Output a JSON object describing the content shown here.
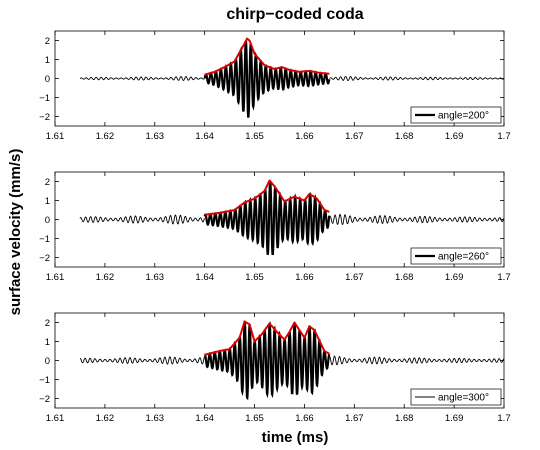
{
  "chart_data": {
    "type": "line",
    "title": "chirp−coded coda",
    "xlabel": "time (ms)",
    "ylabel": "surface velocity (mm/s)",
    "xlim": [
      1.61,
      1.7
    ],
    "ylim": [
      -2.5,
      2.5
    ],
    "xticks": [
      "1.61",
      "1.62",
      "1.63",
      "1.64",
      "1.65",
      "1.66",
      "1.67",
      "1.68",
      "1.69",
      "1.7"
    ],
    "yticks": [
      "2",
      "1",
      "0",
      "−1",
      "−2"
    ],
    "grid": false,
    "legend_position": "bottom-right",
    "series_colors": {
      "signal": "#000000",
      "envelope": "#dd0000"
    },
    "panels": [
      {
        "legend": "angle=200°",
        "signal_time_range": [
          1.615,
          1.7
        ],
        "envelope_time_range": [
          1.64,
          1.665
        ],
        "wave_frequency_per_ms": 1000,
        "background_amplitude": 0.05,
        "envelope": {
          "x": [
            1.64,
            1.642,
            1.644,
            1.646,
            1.648,
            1.6485,
            1.649,
            1.65,
            1.651,
            1.652,
            1.654,
            1.6555,
            1.657,
            1.659,
            1.661,
            1.663,
            1.665
          ],
          "y": [
            0.2,
            0.35,
            0.6,
            0.9,
            1.85,
            2.1,
            2.0,
            1.3,
            1.0,
            0.7,
            0.5,
            0.6,
            0.45,
            0.35,
            0.4,
            0.3,
            0.25
          ]
        }
      },
      {
        "legend": "angle=260°",
        "signal_time_range": [
          1.615,
          1.7
        ],
        "envelope_time_range": [
          1.64,
          1.665
        ],
        "wave_frequency_per_ms": 1000,
        "background_amplitude": 0.12,
        "envelope": {
          "x": [
            1.64,
            1.643,
            1.646,
            1.648,
            1.65,
            1.652,
            1.653,
            1.654,
            1.656,
            1.658,
            1.66,
            1.661,
            1.6625,
            1.664,
            1.665
          ],
          "y": [
            0.25,
            0.35,
            0.5,
            0.9,
            1.1,
            1.5,
            2.05,
            1.75,
            0.95,
            1.2,
            1.0,
            1.35,
            1.1,
            0.5,
            0.4
          ]
        }
      },
      {
        "legend": "angle=300°",
        "signal_time_range": [
          1.615,
          1.7
        ],
        "envelope_time_range": [
          1.64,
          1.665
        ],
        "wave_frequency_per_ms": 1000,
        "background_amplitude": 0.1,
        "envelope": {
          "x": [
            1.64,
            1.643,
            1.645,
            1.647,
            1.648,
            1.649,
            1.65,
            1.6515,
            1.653,
            1.6545,
            1.656,
            1.657,
            1.658,
            1.66,
            1.661,
            1.662,
            1.664,
            1.665
          ],
          "y": [
            0.3,
            0.5,
            0.6,
            1.2,
            2.05,
            1.9,
            1.0,
            1.4,
            1.95,
            1.5,
            1.1,
            1.5,
            2.0,
            1.2,
            1.8,
            1.6,
            0.5,
            0.35
          ]
        }
      }
    ]
  }
}
